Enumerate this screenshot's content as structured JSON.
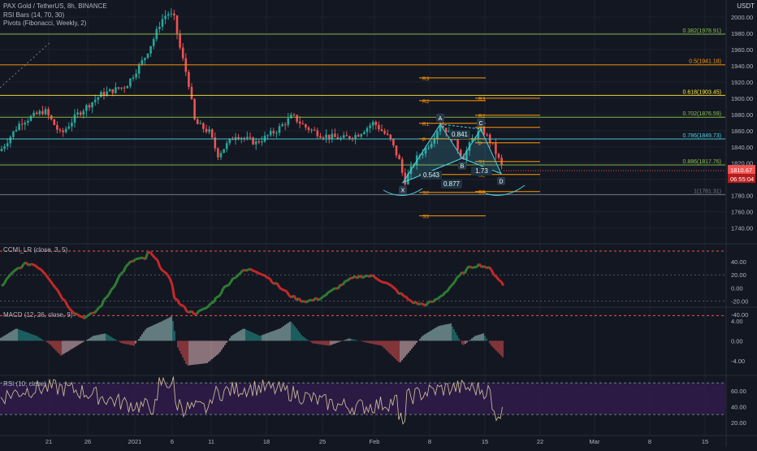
{
  "header": {
    "title": "PAX Gold / TetherUS, 8h, BINANCE",
    "indicator_1": "RSI Bars (14, 70, 30)",
    "indicator_2": "Pivots (Fibonacci, Weekly, 2)",
    "unit": "USDT"
  },
  "colors": {
    "background": "#131722",
    "grid": "#1e222d",
    "up": "#26a69a",
    "down": "#ef5350",
    "fib_green": "#8bc34a",
    "fib_orange": "#ff9800",
    "fib_yellow": "#ffeb3b",
    "fib_cyan": "#4dd0e1",
    "rsi_band": "#311b4d",
    "price_badge": "#ef5350"
  },
  "price_axis": {
    "ticks": [
      "2000.00",
      "1980.00",
      "1960.00",
      "1940.00",
      "1920.00",
      "1900.00",
      "1880.00",
      "1860.00",
      "1840.00",
      "1820.00",
      "1800.00",
      "1780.00",
      "1760.00",
      "1740.00"
    ],
    "last_price": "1810.67",
    "countdown": "06:55:04"
  },
  "time_axis": {
    "labels": [
      "21",
      "26",
      "2021",
      "6",
      "11",
      "18",
      "25",
      "Feb",
      "8",
      "15",
      "22",
      "Mar",
      "8",
      "15"
    ]
  },
  "panes": {
    "ccmi": {
      "label": "CCMI_LR (close, 3, 5)",
      "ticks": [
        "40.00",
        "20.00",
        "0.00",
        "-20.00",
        "-40.00"
      ]
    },
    "macd": {
      "label": "MACD (12, 26, close, 9)",
      "ticks": [
        "4.00",
        "0.00",
        "-4.00"
      ]
    },
    "rsi": {
      "label": "RSI (10, close)",
      "ticks": [
        "60.00",
        "40.00",
        "20.00"
      ]
    }
  },
  "chart_data": [
    {
      "type": "candlestick",
      "title": "PAX Gold / TetherUS, 8h, BINANCE",
      "ylabel": "USDT",
      "ylim": [
        1740,
        2010
      ],
      "fibonacci_levels": [
        {
          "label": "0.382(1978.91)",
          "value": 1978.91,
          "color": "#8bc34a"
        },
        {
          "label": "0.5(1941.18)",
          "value": 1941.18,
          "color": "#ff9800"
        },
        {
          "label": "0.618(1903.45)",
          "value": 1903.45,
          "color": "#ffeb3b"
        },
        {
          "label": "0.702(1876.59)",
          "value": 1876.59,
          "color": "#8bc34a"
        },
        {
          "label": "0.786(1849.73)",
          "value": 1849.73,
          "color": "#4dd0e1"
        },
        {
          "label": "0.886(1817.76)",
          "value": 1817.76,
          "color": "#8bc34a"
        },
        {
          "label": "1(1781.31)",
          "value": 1781.31,
          "color": "#787b86"
        }
      ],
      "pivots": [
        {
          "label": "R3",
          "value": 1925
        },
        {
          "label": "R2",
          "value": 1897
        },
        {
          "label": "R1",
          "value": 1869
        },
        {
          "label": "P",
          "value": 1850
        },
        {
          "label": "S1",
          "value": 1806
        },
        {
          "label": "S2",
          "value": 1784
        },
        {
          "label": "S3",
          "value": 1755
        }
      ],
      "pivots_week2": [
        {
          "label": "R3",
          "value": 1900
        },
        {
          "label": "R2",
          "value": 1879
        },
        {
          "label": "R1",
          "value": 1864
        },
        {
          "label": "P",
          "value": 1845
        },
        {
          "label": "S1",
          "value": 1822
        },
        {
          "label": "S2",
          "value": 1806
        },
        {
          "label": "S3",
          "value": 1785
        }
      ],
      "harmonic_pattern": {
        "points": [
          {
            "label": "X",
            "value": 1796
          },
          {
            "label": "A",
            "value": 1868
          },
          {
            "label": "B",
            "value": 1826
          },
          {
            "label": "C",
            "value": 1862
          },
          {
            "label": "D",
            "value": 1807
          }
        ],
        "ratios": [
          "0.543",
          "0.841",
          "0.877",
          "1.73"
        ]
      },
      "last_price": 1810.67
    },
    {
      "type": "line",
      "title": "CCMI_LR (close, 3, 5)",
      "ylim": [
        -48,
        62
      ]
    },
    {
      "type": "bar",
      "title": "MACD (12, 26, close, 9)",
      "ylim": [
        -5.2,
        5.2
      ]
    },
    {
      "type": "line",
      "title": "RSI (10, close)",
      "ylim": [
        13,
        83
      ],
      "bands": [
        70,
        30
      ]
    }
  ]
}
